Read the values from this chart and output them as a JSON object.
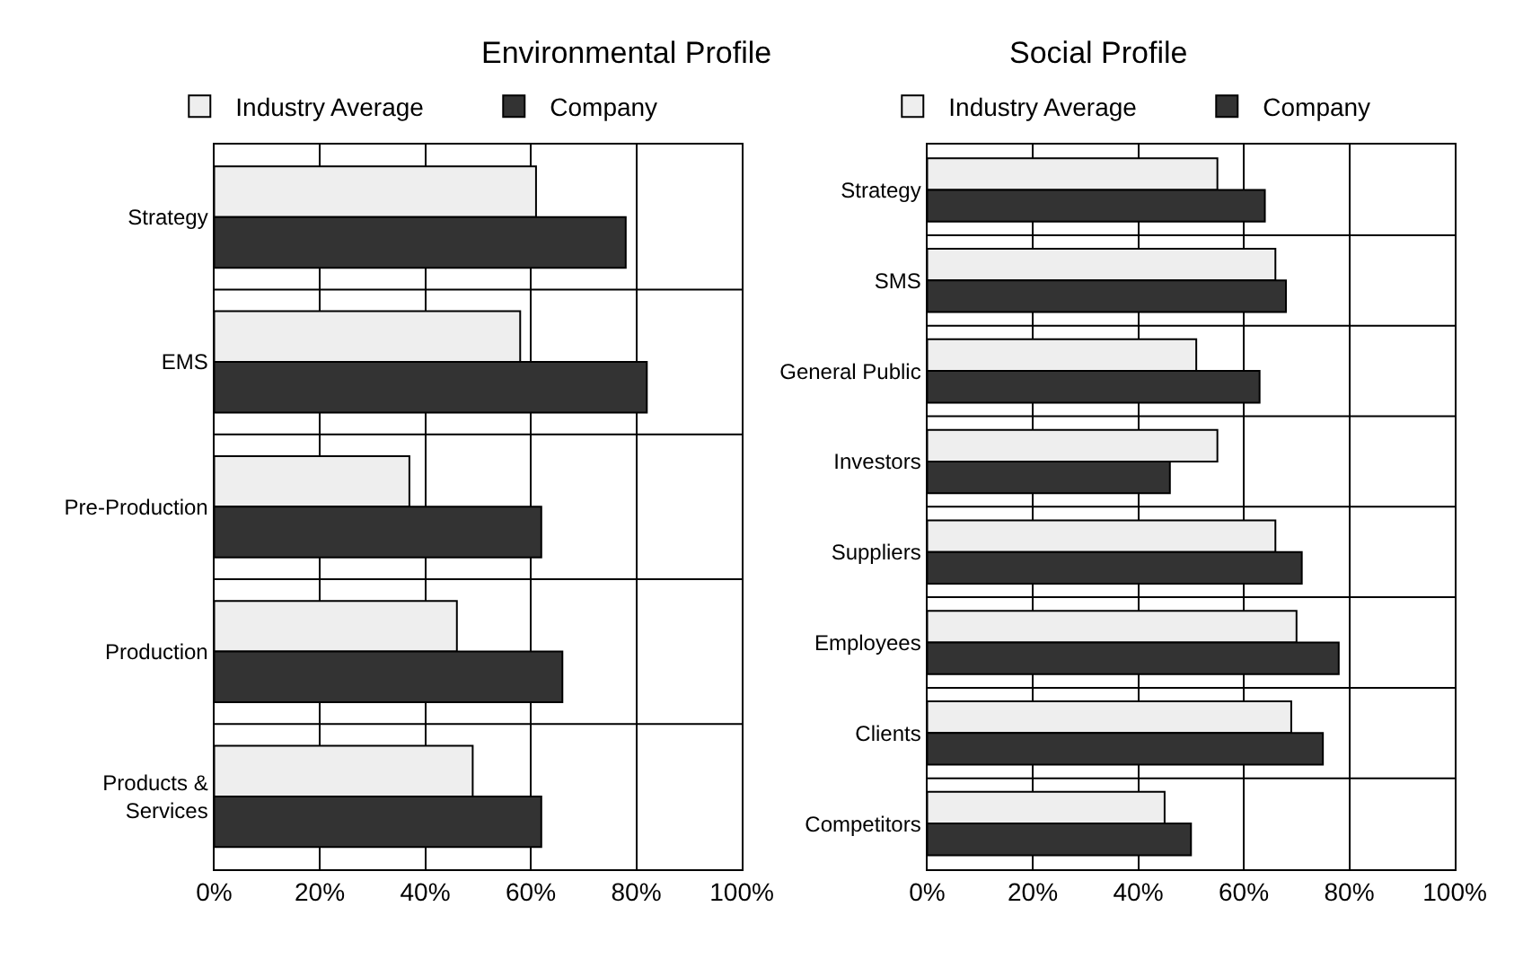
{
  "chart_data": [
    {
      "type": "bar",
      "title": "Environmental Profile",
      "orientation": "horizontal",
      "categories": [
        "Strategy",
        "EMS",
        "Pre-Production",
        "Production",
        "Products &\nServices"
      ],
      "series": [
        {
          "name": "Industry Average",
          "color": "#eeeeee",
          "values": [
            61,
            58,
            37,
            46,
            49
          ]
        },
        {
          "name": "Company",
          "color": "#333333",
          "values": [
            78,
            82,
            62,
            66,
            62
          ]
        }
      ],
      "xlim": [
        0,
        100
      ],
      "xticks": [
        {
          "value": 0,
          "label": "0%"
        },
        {
          "value": 20,
          "label": "20%"
        },
        {
          "value": 40,
          "label": "40%"
        },
        {
          "value": 60,
          "label": "60%"
        },
        {
          "value": 80,
          "label": "80%"
        },
        {
          "value": 100,
          "label": "100%"
        }
      ],
      "grid": true,
      "legend": "top"
    },
    {
      "type": "bar",
      "title": "Social Profile",
      "orientation": "horizontal",
      "categories": [
        "Strategy",
        "SMS",
        "General Public",
        "Investors",
        "Suppliers",
        "Employees",
        "Clients",
        "Competitors"
      ],
      "series": [
        {
          "name": "Industry Average",
          "color": "#eeeeee",
          "values": [
            55,
            66,
            51,
            55,
            66,
            70,
            69,
            45
          ]
        },
        {
          "name": "Company",
          "color": "#333333",
          "values": [
            64,
            68,
            63,
            46,
            71,
            78,
            75,
            50
          ]
        }
      ],
      "xlim": [
        0,
        100
      ],
      "xticks": [
        {
          "value": 0,
          "label": "0%"
        },
        {
          "value": 20,
          "label": "20%"
        },
        {
          "value": 40,
          "label": "40%"
        },
        {
          "value": 60,
          "label": "60%"
        },
        {
          "value": 80,
          "label": "80%"
        },
        {
          "value": 100,
          "label": "100%"
        }
      ],
      "grid": true,
      "legend": "top"
    }
  ]
}
